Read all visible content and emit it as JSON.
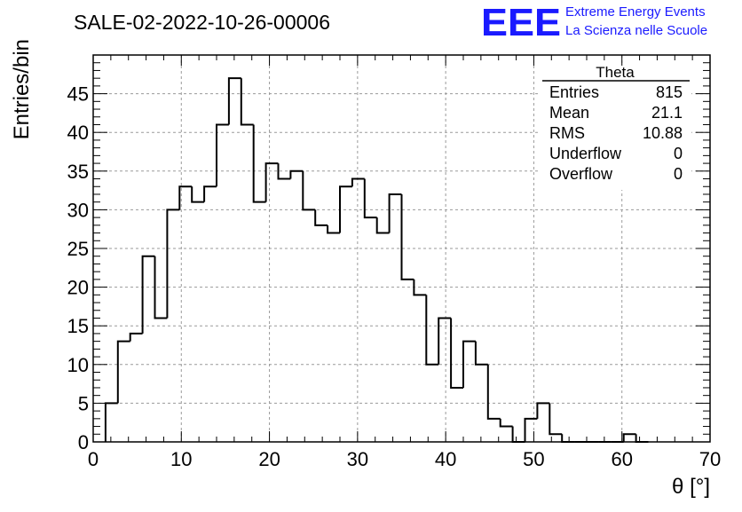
{
  "header": {
    "title": "SALE-02-2022-10-26-00006",
    "logo_text": "EEE",
    "logo_line1": "Extreme Energy Events",
    "logo_line2": "La Scienza nelle Scuole"
  },
  "colors": {
    "logo": "#1a1aff",
    "grid": "#9a9a9a",
    "axis": "#000000",
    "histogram": "#000000"
  },
  "stats": {
    "name": "Theta",
    "rows": [
      {
        "label": "Entries",
        "value": "815"
      },
      {
        "label": "Mean",
        "value": "21.1"
      },
      {
        "label": "RMS",
        "value": "10.88"
      },
      {
        "label": "Underflow",
        "value": "0"
      },
      {
        "label": "Overflow",
        "value": "0"
      }
    ]
  },
  "chart_data": {
    "type": "bar",
    "style": "step-histogram",
    "title": "SALE-02-2022-10-26-00006",
    "xlabel": "θ [°]",
    "ylabel": "Entries/bin",
    "xlim": [
      0,
      70
    ],
    "ylim": [
      0,
      50
    ],
    "grid": true,
    "legend_position": "top-right",
    "bin_width": 1.4,
    "bin_edges_start": 1.4,
    "xticks": [
      0,
      10,
      20,
      30,
      40,
      50,
      60,
      70
    ],
    "yticks": [
      0,
      5,
      10,
      15,
      20,
      25,
      30,
      35,
      40,
      45
    ],
    "values": [
      5,
      13,
      14,
      24,
      16,
      30,
      33,
      31,
      33,
      41,
      47,
      41,
      31,
      36,
      34,
      35,
      30,
      28,
      27,
      33,
      34,
      29,
      27,
      32,
      21,
      19,
      10,
      16,
      7,
      13,
      10,
      3,
      2,
      0,
      3,
      5,
      1,
      0,
      0,
      0,
      0,
      0,
      1,
      0
    ]
  }
}
